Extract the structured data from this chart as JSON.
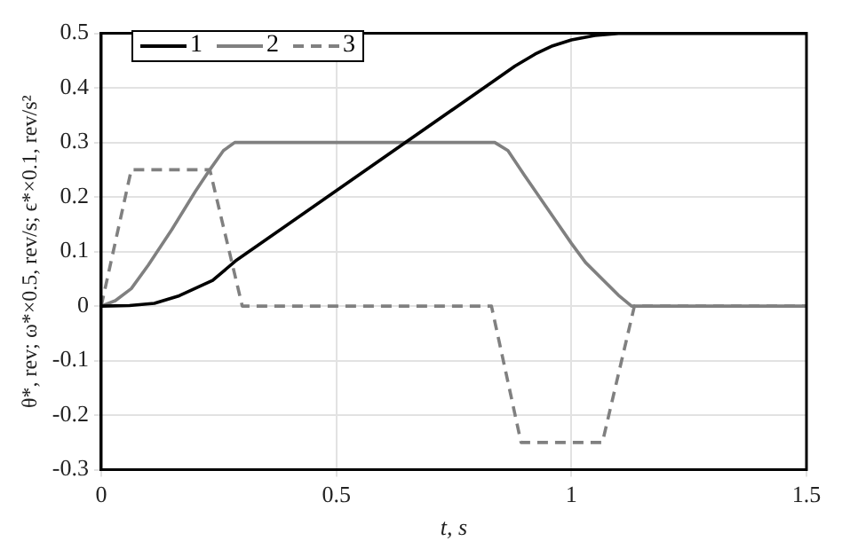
{
  "chart_data": {
    "type": "line",
    "xlabel": "t, s",
    "ylabel": "θ*, rev; ω*×0.5, rev/s; ϵ*×0.1, rev/s²",
    "xlim": [
      0,
      1.5
    ],
    "xticks": [
      0,
      0.5,
      1,
      1.5
    ],
    "ylim": [
      -0.3,
      0.5
    ],
    "yticks": [
      -0.3,
      -0.2,
      -0.1,
      0,
      0.1,
      0.2,
      0.3,
      0.4,
      0.5
    ],
    "grid": true,
    "legend": "top left",
    "marker": "none",
    "series": [
      {
        "name": "1",
        "color": "#000000",
        "line_style": "solid",
        "x": [
          0,
          0.06,
          0.113,
          0.166,
          0.237,
          0.286,
          0.837,
          0.88,
          0.923,
          0.96,
          1.0,
          1.05,
          1.1,
          1.5
        ],
        "values": [
          0,
          0.001,
          0.005,
          0.019,
          0.047,
          0.083,
          0.414,
          0.44,
          0.462,
          0.477,
          0.488,
          0.496,
          0.5,
          0.5
        ]
      },
      {
        "name": "2",
        "color": "#808080",
        "line_style": "solid",
        "x": [
          0,
          0.03,
          0.064,
          0.1,
          0.15,
          0.2,
          0.231,
          0.26,
          0.284,
          0.837,
          0.865,
          0.9,
          1.0,
          1.03,
          1.1,
          1.128,
          1.5
        ],
        "values": [
          0,
          0.01,
          0.032,
          0.075,
          0.14,
          0.21,
          0.25,
          0.285,
          0.3,
          0.3,
          0.285,
          0.24,
          0.115,
          0.08,
          0.02,
          0,
          0
        ]
      },
      {
        "name": "3",
        "color": "#808080",
        "line_style": "dashed",
        "x": [
          0,
          0.064,
          0.231,
          0.3,
          0.83,
          0.893,
          1.066,
          1.134,
          1.5
        ],
        "values": [
          0,
          0.25,
          0.25,
          0,
          0,
          -0.25,
          -0.25,
          0,
          0
        ]
      }
    ]
  }
}
